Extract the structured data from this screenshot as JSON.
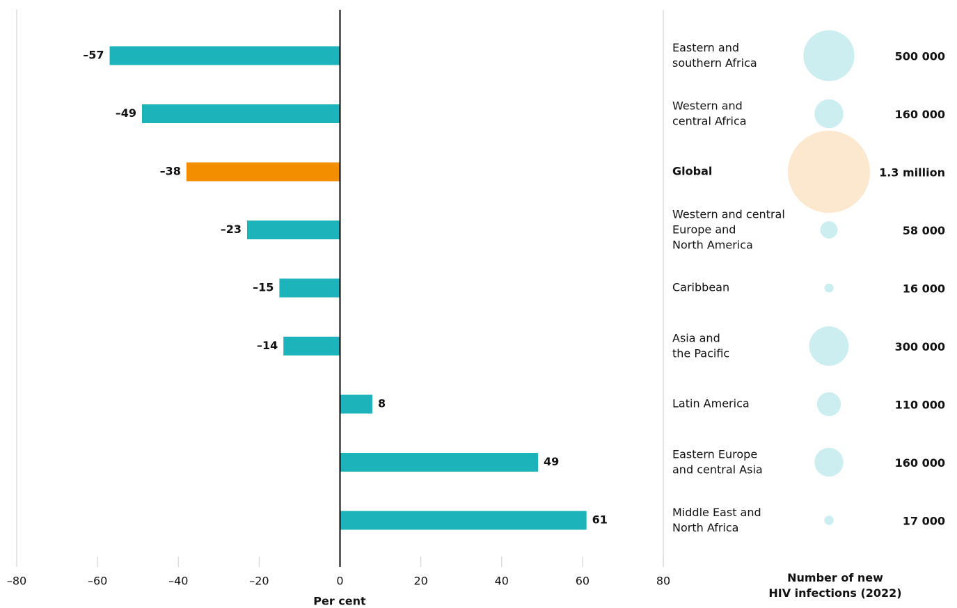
{
  "chart_data": {
    "type": "bar",
    "orientation": "horizontal",
    "categories": [
      "Eastern and\nsouthern Africa",
      "Western and\ncentral Africa",
      "Global",
      "Western and central\nEurope and\nNorth America",
      "Caribbean",
      "Asia and\nthe Pacific",
      "Latin America",
      "Eastern Europe\nand central Asia",
      "Middle East and\nNorth Africa"
    ],
    "values": [
      -57,
      -49,
      -38,
      -23,
      -15,
      -14,
      8,
      49,
      61
    ],
    "value_labels": [
      "–57",
      "–49",
      "–38",
      "–23",
      "–15",
      "–14",
      "8",
      "49",
      "61"
    ],
    "colors": [
      "#1cb3ba",
      "#1cb3ba",
      "#f28e00",
      "#1cb3ba",
      "#1cb3ba",
      "#1cb3ba",
      "#1cb3ba",
      "#1cb3ba",
      "#1cb3ba"
    ],
    "xlim": [
      -80,
      80
    ],
    "xticks": [
      {
        "value": -80,
        "label": "–80"
      },
      {
        "value": -60,
        "label": "–60"
      },
      {
        "value": -40,
        "label": "–40"
      },
      {
        "value": -20,
        "label": "–20"
      },
      0,
      20,
      40,
      60,
      80
    ],
    "xlabel": "Per cent",
    "bubbles": {
      "title": "Number of new\nHIV infections (2022)",
      "values": [
        500000,
        160000,
        1300000,
        58000,
        16000,
        300000,
        110000,
        160000,
        17000
      ],
      "value_labels": [
        "500 000",
        "160 000",
        "1.3 million",
        "58 000",
        "16 000",
        "300 000",
        "110 000",
        "160 000",
        "17 000"
      ],
      "colors": [
        "#cdeef0",
        "#cdeef0",
        "#fce8cf",
        "#cdeef0",
        "#cdeef0",
        "#cdeef0",
        "#cdeef0",
        "#cdeef0",
        "#cdeef0"
      ]
    }
  }
}
